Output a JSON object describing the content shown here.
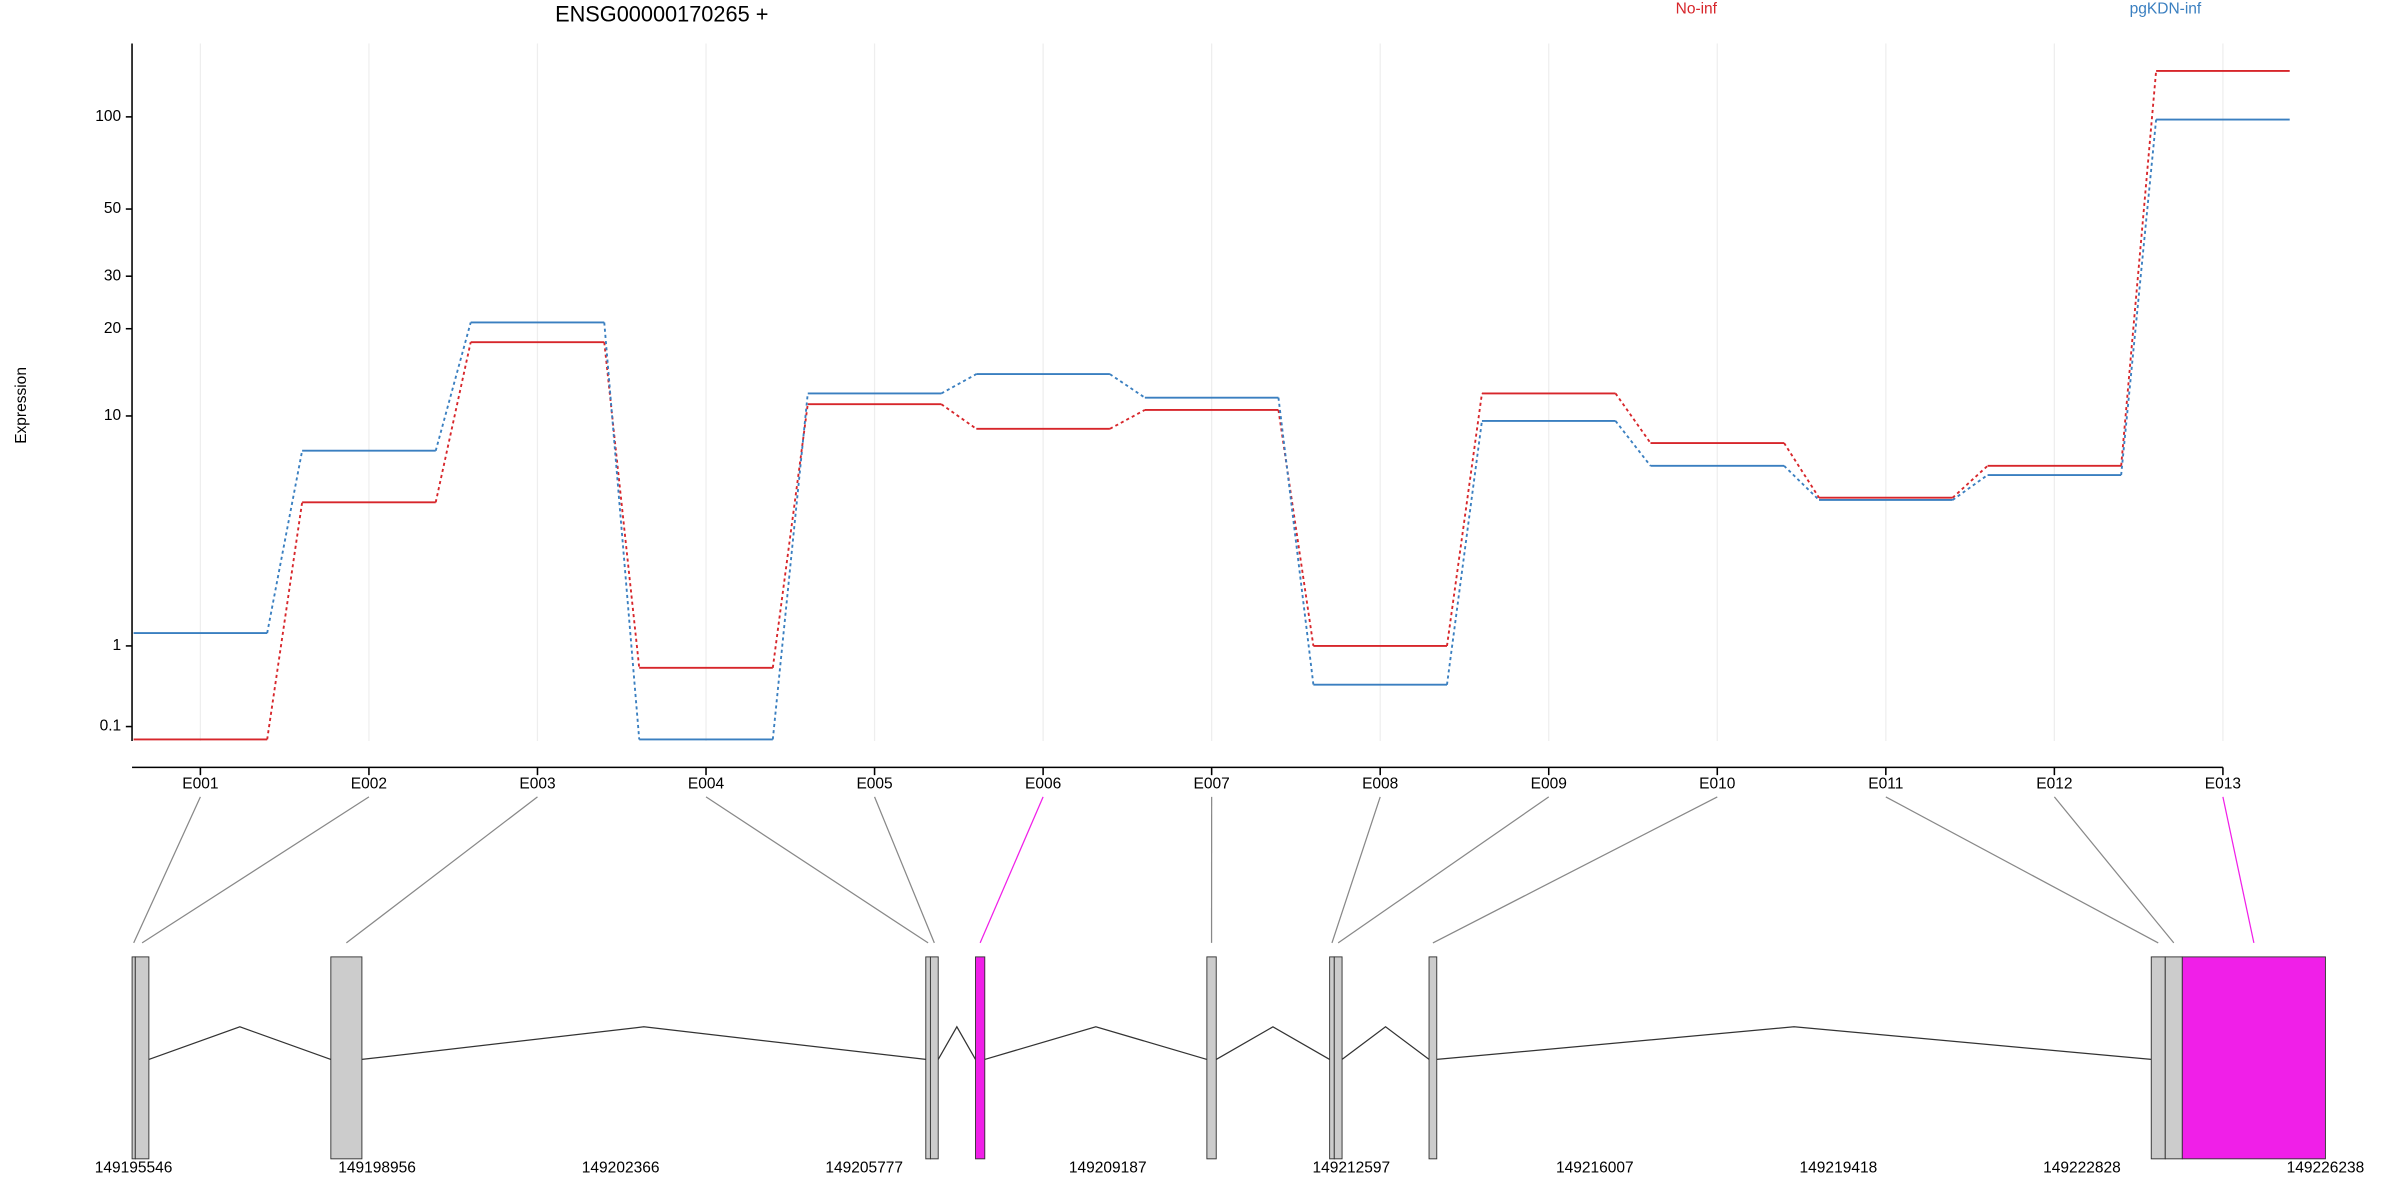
{
  "chart_data": {
    "type": "line",
    "title": "ENSG00000170265 +",
    "y_label": "Expression",
    "yscale": "log1p",
    "grid": true,
    "legend": "top-right",
    "categories": [
      "E001",
      "E002",
      "E003",
      "E004",
      "E005",
      "E006",
      "E007",
      "E008",
      "E009",
      "E010",
      "E011",
      "E012",
      "E013"
    ],
    "series": [
      {
        "name": "No-inf",
        "color": "#d7262b",
        "values": [
          0,
          4.8,
          18,
          0.7,
          11,
          9,
          10.5,
          1,
          12,
          8,
          5,
          6.6,
          141
        ]
      },
      {
        "name": "pgKDN-inf",
        "color": "#3a7fc0",
        "values": [
          1.2,
          7.5,
          21,
          0,
          12,
          14,
          11.6,
          0.5,
          9.6,
          6.6,
          4.9,
          6.1,
          98
        ]
      }
    ],
    "ylim": [
      0,
      173
    ],
    "yticks": [
      0.1,
      1,
      10,
      20,
      30,
      50,
      100
    ]
  },
  "gene_model": {
    "xlim": [
      149195546,
      149226238
    ],
    "xticks": [
      149195546,
      149198956,
      149202366,
      149205777,
      149209187,
      149212597,
      149216007,
      149219418,
      149222828,
      149226238
    ],
    "exons": [
      {
        "start": 149195525,
        "end": 149195570,
        "color": "#cccccc"
      },
      {
        "start": 149195570,
        "end": 149195760,
        "color": "#cccccc"
      },
      {
        "start": 149198308,
        "end": 149198743,
        "color": "#cccccc"
      },
      {
        "start": 149206639,
        "end": 149206704,
        "color": "#cccccc"
      },
      {
        "start": 149206704,
        "end": 149206813,
        "color": "#cccccc"
      },
      {
        "start": 149207335,
        "end": 149207465,
        "color": "#f01fe8"
      },
      {
        "start": 149210575,
        "end": 149210706,
        "color": "#cccccc"
      },
      {
        "start": 149212294,
        "end": 149212359,
        "color": "#cccccc"
      },
      {
        "start": 149212359,
        "end": 149212468,
        "color": "#cccccc"
      },
      {
        "start": 149213686,
        "end": 149213794,
        "color": "#cccccc"
      },
      {
        "start": 149223799,
        "end": 149223995,
        "color": "#cccccc"
      },
      {
        "start": 149223995,
        "end": 149224234,
        "color": "#cccccc"
      },
      {
        "start": 149224234,
        "end": 149226238,
        "color": "#f01fe8"
      }
    ]
  }
}
